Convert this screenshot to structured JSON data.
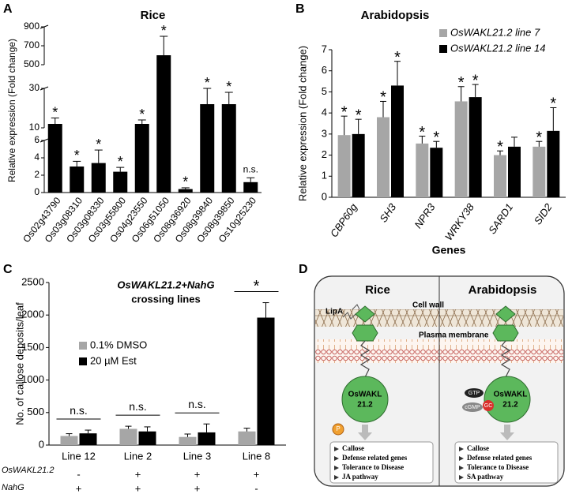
{
  "panel_labels": [
    "A",
    "B",
    "C",
    "D"
  ],
  "chart_data": [
    {
      "type": "bar",
      "title": "Rice",
      "y_label": "Relative expression (Fold change)",
      "categories": [
        "Os02g43790",
        "Os03g08310",
        "Os03g08330",
        "Os03g55800",
        "Os04g23550",
        "Os06g51050",
        "Os08g36920",
        "Os08g39840",
        "Os08g39850",
        "Os10g25230"
      ],
      "values": [
        12,
        3,
        3.4,
        2.4,
        12,
        600,
        0.4,
        22,
        22,
        1.2
      ],
      "errors": [
        3,
        0.6,
        1.5,
        0.5,
        2,
        200,
        0.15,
        8,
        6,
        0.5
      ],
      "annotations": [
        "*",
        "*",
        "*",
        "*",
        "*",
        "*",
        "*",
        "*",
        "*",
        "n.s."
      ],
      "color": "#000000",
      "y_segments": [
        {
          "ylim": [
            0,
            6
          ],
          "yticks": [
            0,
            2,
            4,
            6
          ]
        },
        {
          "ylim": [
            10,
            30
          ],
          "yticks": [
            10,
            30
          ]
        },
        {
          "ylim": [
            500,
            900
          ],
          "yticks": [
            500,
            700,
            900
          ]
        }
      ]
    },
    {
      "type": "grouped_bar",
      "title": "Arabidopsis",
      "y_label": "Relative expression (Fold change)",
      "x_label": "Genes",
      "categories": [
        "CBP60g",
        "SH3",
        "NPR3",
        "WRKY38",
        "SARD1",
        "SID2"
      ],
      "series": [
        {
          "name": "OsWAKL21.2 line 7",
          "color": "#a6a6a6",
          "values": [
            2.95,
            3.8,
            2.55,
            4.55,
            2.0,
            2.4
          ],
          "errors": [
            0.9,
            0.75,
            0.35,
            0.7,
            0.2,
            0.25
          ],
          "annotations": [
            "*",
            "*",
            "*",
            "*",
            "*",
            "*"
          ]
        },
        {
          "name": "OsWAKL21.2 line 14",
          "color": "#000000",
          "values": [
            3.0,
            5.3,
            2.35,
            4.75,
            2.4,
            3.15
          ],
          "errors": [
            0.7,
            1.15,
            0.3,
            0.6,
            0.45,
            1.1
          ],
          "annotations": [
            "*",
            "*",
            "*",
            "*",
            null,
            "*"
          ]
        }
      ],
      "ylim": [
        0,
        7
      ],
      "yticks": [
        0,
        1,
        2,
        3,
        4,
        5,
        6,
        7
      ],
      "legend": "upper right"
    },
    {
      "type": "grouped_bar",
      "title": [
        "OsWAKL21.2+NahG",
        "crossing lines"
      ],
      "y_label": "No. of callose deposits/leaf",
      "categories": [
        "Line 12",
        "Line 2",
        "Line 3",
        "Line 8"
      ],
      "series": [
        {
          "name": "0.1% DMSO",
          "color": "#a6a6a6",
          "values": [
            140,
            250,
            125,
            210
          ],
          "errors": [
            35,
            40,
            45,
            50
          ]
        },
        {
          "name": "20 µM Est",
          "color": "#000000",
          "values": [
            180,
            210,
            195,
            1960
          ],
          "errors": [
            50,
            70,
            130,
            230
          ]
        }
      ],
      "annotations": [
        "n.s.",
        "n.s.",
        "n.s.",
        "*"
      ],
      "genotype_rows": [
        {
          "name": "OsWAKL21.2",
          "values": [
            "-",
            "+",
            "+",
            "+"
          ]
        },
        {
          "name": "NahG",
          "values": [
            "+",
            "+",
            "+",
            "-"
          ]
        }
      ],
      "ylim": [
        0,
        2500
      ],
      "yticks": [
        0,
        500,
        1000,
        1500,
        2000,
        2500
      ],
      "legend": "upper left"
    }
  ],
  "diagram": {
    "rice": {
      "title": "Rice",
      "lipa": "LipA",
      "cell_wall": "Cell wall",
      "plasma_membrane": "Plasma membrane",
      "receptor": [
        "OsWAKL",
        "21.2"
      ],
      "phospho": "P",
      "outcomes": [
        "Callose",
        "Defense related genes",
        "Tolerance to Disease",
        "JA pathway"
      ]
    },
    "arabidopsis": {
      "title": "Arabidopsis",
      "receptor": [
        "OsWAKL",
        "21.2"
      ],
      "gtp": "GTP",
      "cgmp": "cGMP",
      "gc": "GC",
      "outcomes": [
        "Callose",
        "Defense related genes",
        "Tolerance to Disease",
        "SA pathway"
      ]
    }
  }
}
